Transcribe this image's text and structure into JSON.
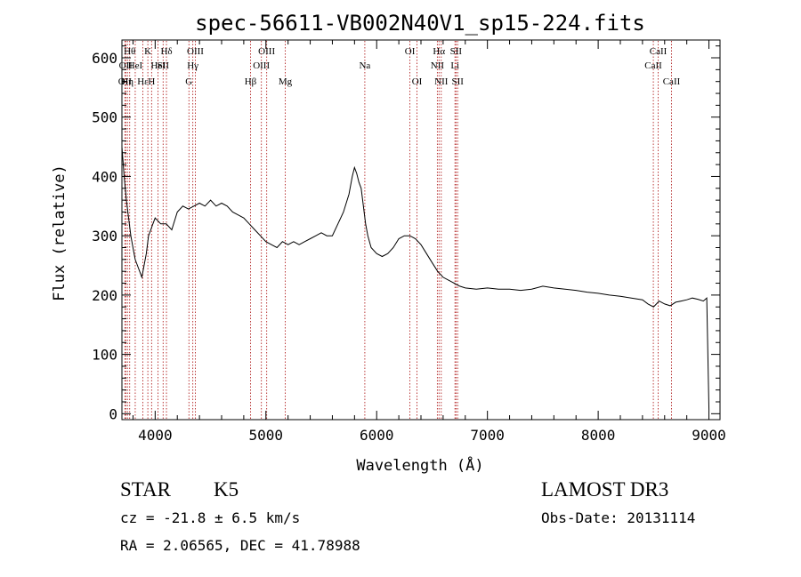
{
  "chart_data": {
    "type": "line",
    "title": "spec-56611-VB002N40V1_sp15-224.fits",
    "xlabel": "Wavelength (Å)",
    "ylabel": "Flux (relative)",
    "xlim": [
      3700,
      9100
    ],
    "ylim": [
      -10,
      630
    ],
    "xticks": [
      4000,
      5000,
      6000,
      7000,
      8000,
      9000
    ],
    "yticks": [
      0,
      100,
      200,
      300,
      400,
      500,
      600
    ],
    "xtick_labels": [
      "4000",
      "5000",
      "6000",
      "7000",
      "8000",
      "9000"
    ],
    "ytick_labels": [
      "0",
      "100",
      "200",
      "300",
      "400",
      "500",
      "600"
    ],
    "series": [
      {
        "name": "flux",
        "x": [
          3700,
          3720,
          3740,
          3760,
          3780,
          3800,
          3820,
          3840,
          3860,
          3880,
          3900,
          3920,
          3940,
          3960,
          3980,
          4000,
          4050,
          4100,
          4150,
          4200,
          4250,
          4300,
          4350,
          4400,
          4450,
          4500,
          4550,
          4600,
          4650,
          4700,
          4750,
          4800,
          4850,
          4900,
          4950,
          5000,
          5050,
          5100,
          5150,
          5200,
          5250,
          5300,
          5350,
          5400,
          5450,
          5500,
          5550,
          5600,
          5650,
          5700,
          5750,
          5780,
          5800,
          5820,
          5840,
          5860,
          5880,
          5900,
          5920,
          5950,
          6000,
          6050,
          6100,
          6150,
          6200,
          6250,
          6300,
          6350,
          6400,
          6450,
          6500,
          6550,
          6600,
          6650,
          6700,
          6750,
          6800,
          6900,
          7000,
          7100,
          7200,
          7300,
          7400,
          7500,
          7600,
          7700,
          7800,
          7900,
          8000,
          8100,
          8200,
          8300,
          8400,
          8450,
          8500,
          8550,
          8600,
          8650,
          8700,
          8750,
          8800,
          8850,
          8900,
          8950,
          8980,
          9000
        ],
        "values": [
          450,
          400,
          360,
          330,
          300,
          280,
          260,
          250,
          240,
          230,
          250,
          270,
          300,
          310,
          320,
          330,
          320,
          320,
          310,
          340,
          350,
          345,
          350,
          355,
          350,
          360,
          350,
          355,
          350,
          340,
          335,
          330,
          320,
          310,
          300,
          290,
          285,
          280,
          290,
          285,
          290,
          285,
          290,
          295,
          300,
          305,
          300,
          300,
          320,
          340,
          370,
          400,
          415,
          405,
          390,
          380,
          350,
          320,
          300,
          280,
          270,
          265,
          270,
          280,
          295,
          300,
          300,
          295,
          285,
          270,
          255,
          240,
          230,
          225,
          220,
          215,
          212,
          210,
          212,
          210,
          210,
          208,
          210,
          215,
          212,
          210,
          208,
          205,
          203,
          200,
          198,
          195,
          192,
          185,
          180,
          190,
          185,
          182,
          188,
          190,
          192,
          195,
          193,
          190,
          195,
          5
        ]
      }
    ],
    "lines": [
      {
        "x": 3727,
        "label": "OII",
        "row": 2
      },
      {
        "x": 3734,
        "label": "OII",
        "row": 1
      },
      {
        "x": 3750,
        "label": "Hη",
        "row": 2
      },
      {
        "x": 3770,
        "label": "Hθ",
        "row": 0
      },
      {
        "x": 3820,
        "label": "HeI",
        "row": 1
      },
      {
        "x": 3889,
        "label": "Hε",
        "row": 2
      },
      {
        "x": 3934,
        "label": "K",
        "row": 0
      },
      {
        "x": 3968,
        "label": "H",
        "row": 2
      },
      {
        "x": 4026,
        "label": "HeI",
        "row": 1
      },
      {
        "x": 4072,
        "label": "SII",
        "row": 1
      },
      {
        "x": 4102,
        "label": "Hδ",
        "row": 0
      },
      {
        "x": 4305,
        "label": "G",
        "row": 2
      },
      {
        "x": 4340,
        "label": "Hγ",
        "row": 1
      },
      {
        "x": 4363,
        "label": "OIII",
        "row": 0
      },
      {
        "x": 4861,
        "label": "Hβ",
        "row": 2
      },
      {
        "x": 4959,
        "label": "OIII",
        "row": 1
      },
      {
        "x": 5007,
        "label": "OIII",
        "row": 0
      },
      {
        "x": 5175,
        "label": "Mg",
        "row": 2
      },
      {
        "x": 5893,
        "label": "Na",
        "row": 1
      },
      {
        "x": 6300,
        "label": "OI",
        "row": 0
      },
      {
        "x": 6364,
        "label": "OI",
        "row": 2
      },
      {
        "x": 6548,
        "label": "NII",
        "row": 1
      },
      {
        "x": 6563,
        "label": "Hα",
        "row": 0
      },
      {
        "x": 6583,
        "label": "NII",
        "row": 2
      },
      {
        "x": 6707,
        "label": "Li",
        "row": 1
      },
      {
        "x": 6716,
        "label": "SII",
        "row": 0
      },
      {
        "x": 6731,
        "label": "SII",
        "row": 2
      },
      {
        "x": 8498,
        "label": "CaII",
        "row": 1
      },
      {
        "x": 8542,
        "label": "CaII",
        "row": 0
      },
      {
        "x": 8662,
        "label": "CaII",
        "row": 2
      }
    ],
    "colors": {
      "axis": "#000000",
      "line": "#000000",
      "marker": "#b22222"
    }
  },
  "footer": {
    "object_class": "STAR",
    "subclass": "K5",
    "redshift": "cz = -21.8 ± 6.5 km/s",
    "coords": "RA =   2.06565, DEC =  41.78988",
    "survey": "LAMOST DR3",
    "obs_date": "Obs-Date: 20131114"
  }
}
